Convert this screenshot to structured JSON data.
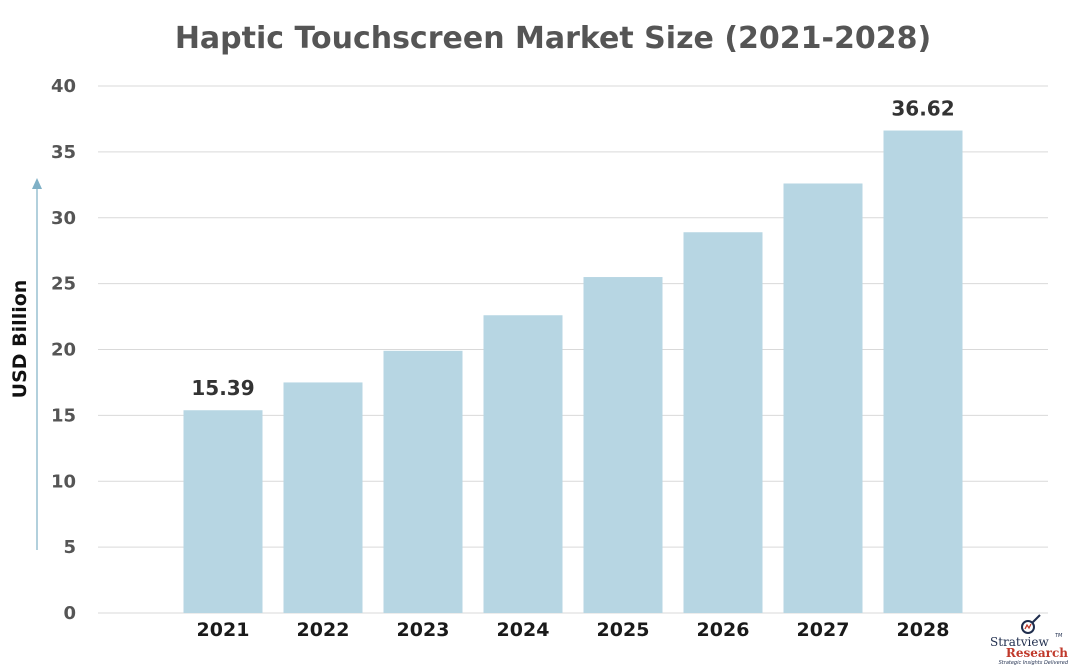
{
  "chart_data": {
    "type": "bar",
    "title": "Haptic Touchscreen Market Size (2021-2028)",
    "xlabel": "",
    "ylabel": "USD Billion",
    "categories": [
      "2021",
      "2022",
      "2023",
      "2024",
      "2025",
      "2026",
      "2027",
      "2028"
    ],
    "values": [
      15.39,
      17.5,
      19.9,
      22.6,
      25.5,
      28.9,
      32.6,
      36.62
    ],
    "data_labels": [
      {
        "index": 0,
        "text": "15.39"
      },
      {
        "index": 7,
        "text": "36.62"
      }
    ],
    "ylim": [
      0,
      40
    ],
    "yticks": [
      0,
      5,
      10,
      15,
      20,
      25,
      30,
      35,
      40
    ],
    "grid": true,
    "legend": "none",
    "bar_color": "#b7d6e3",
    "axis_arrow_color": "#7fb0c6"
  },
  "logo": {
    "name": "Stratview",
    "sub": "Research",
    "tagline": "Strategic Insights Delivered",
    "tm": "TM",
    "icon": "magnifier-chart-icon"
  }
}
